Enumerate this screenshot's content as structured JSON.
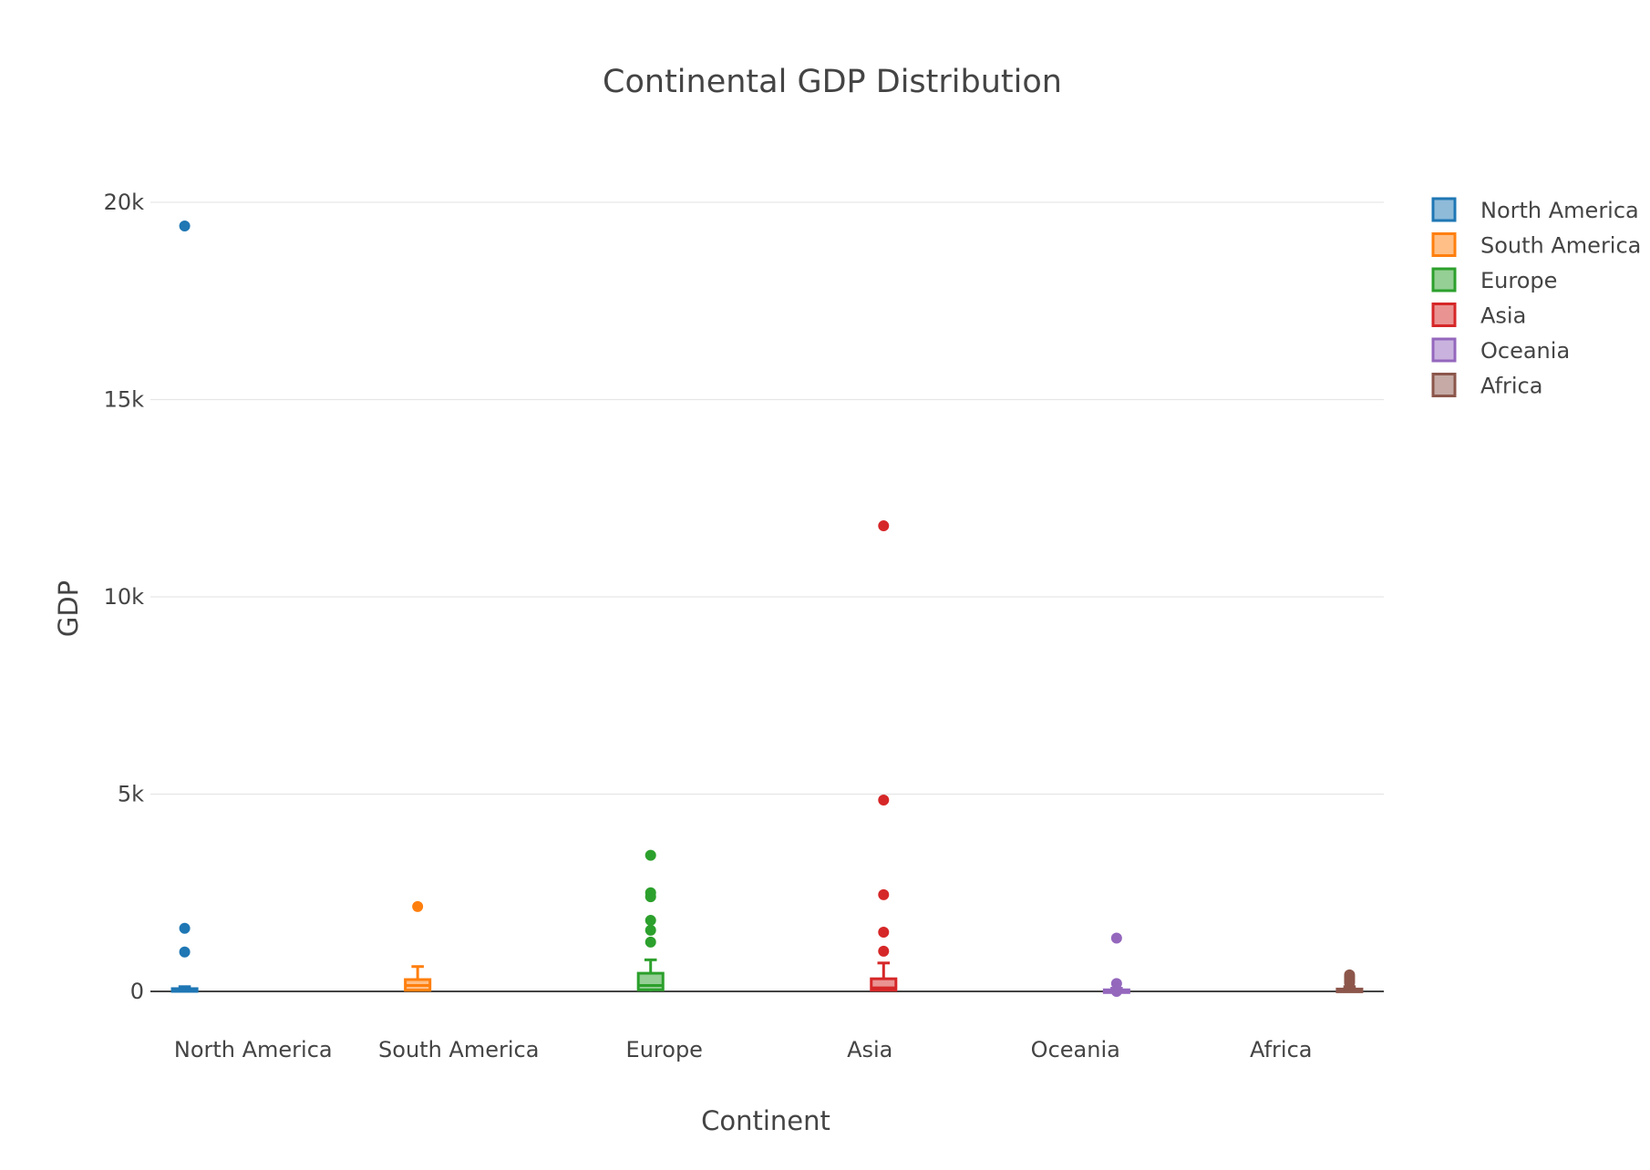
{
  "chart_data": {
    "type": "box",
    "title": "Continental GDP Distribution",
    "xlabel": "Continent",
    "ylabel": "GDP",
    "ylim": [
      -1000,
      21500
    ],
    "yticks": [
      0,
      5000,
      10000,
      15000,
      20000
    ],
    "ytick_labels": [
      "0",
      "5k",
      "10k",
      "15k",
      "20k"
    ],
    "grid": true,
    "legend_position": "top-right",
    "categories": [
      "North America",
      "South America",
      "Europe",
      "Asia",
      "Oceania",
      "Africa"
    ],
    "series": [
      {
        "name": "North America",
        "color": "#1f77b4",
        "box": {
          "q1": 10,
          "median": 30,
          "q3": 70,
          "lower_whisker": 0,
          "upper_whisker": 120
        },
        "outliers": [
          19400,
          1600,
          1000
        ]
      },
      {
        "name": "South America",
        "color": "#ff7f0e",
        "box": {
          "q1": 30,
          "median": 150,
          "q3": 300,
          "lower_whisker": 0,
          "upper_whisker": 630
        },
        "outliers": [
          2150
        ]
      },
      {
        "name": "Europe",
        "color": "#2ca02c",
        "box": {
          "q1": 40,
          "median": 150,
          "q3": 460,
          "lower_whisker": 0,
          "upper_whisker": 800
        },
        "outliers": [
          3450,
          2500,
          2400,
          1800,
          1550,
          1250
        ]
      },
      {
        "name": "Asia",
        "color": "#d62728",
        "box": {
          "q1": 30,
          "median": 90,
          "q3": 320,
          "lower_whisker": 0,
          "upper_whisker": 720
        },
        "outliers": [
          11800,
          4850,
          2450,
          1500,
          1020
        ]
      },
      {
        "name": "Oceania",
        "color": "#9467bd",
        "box": {
          "q1": 0,
          "median": 10,
          "q3": 40,
          "lower_whisker": 0,
          "upper_whisker": 80
        },
        "outliers": [
          1350,
          200,
          0
        ]
      },
      {
        "name": "Africa",
        "color": "#8c564b",
        "box": {
          "q1": 5,
          "median": 20,
          "q3": 60,
          "lower_whisker": 0,
          "upper_whisker": 120
        },
        "outliers": [
          420,
          370,
          320,
          270,
          220
        ]
      }
    ]
  }
}
